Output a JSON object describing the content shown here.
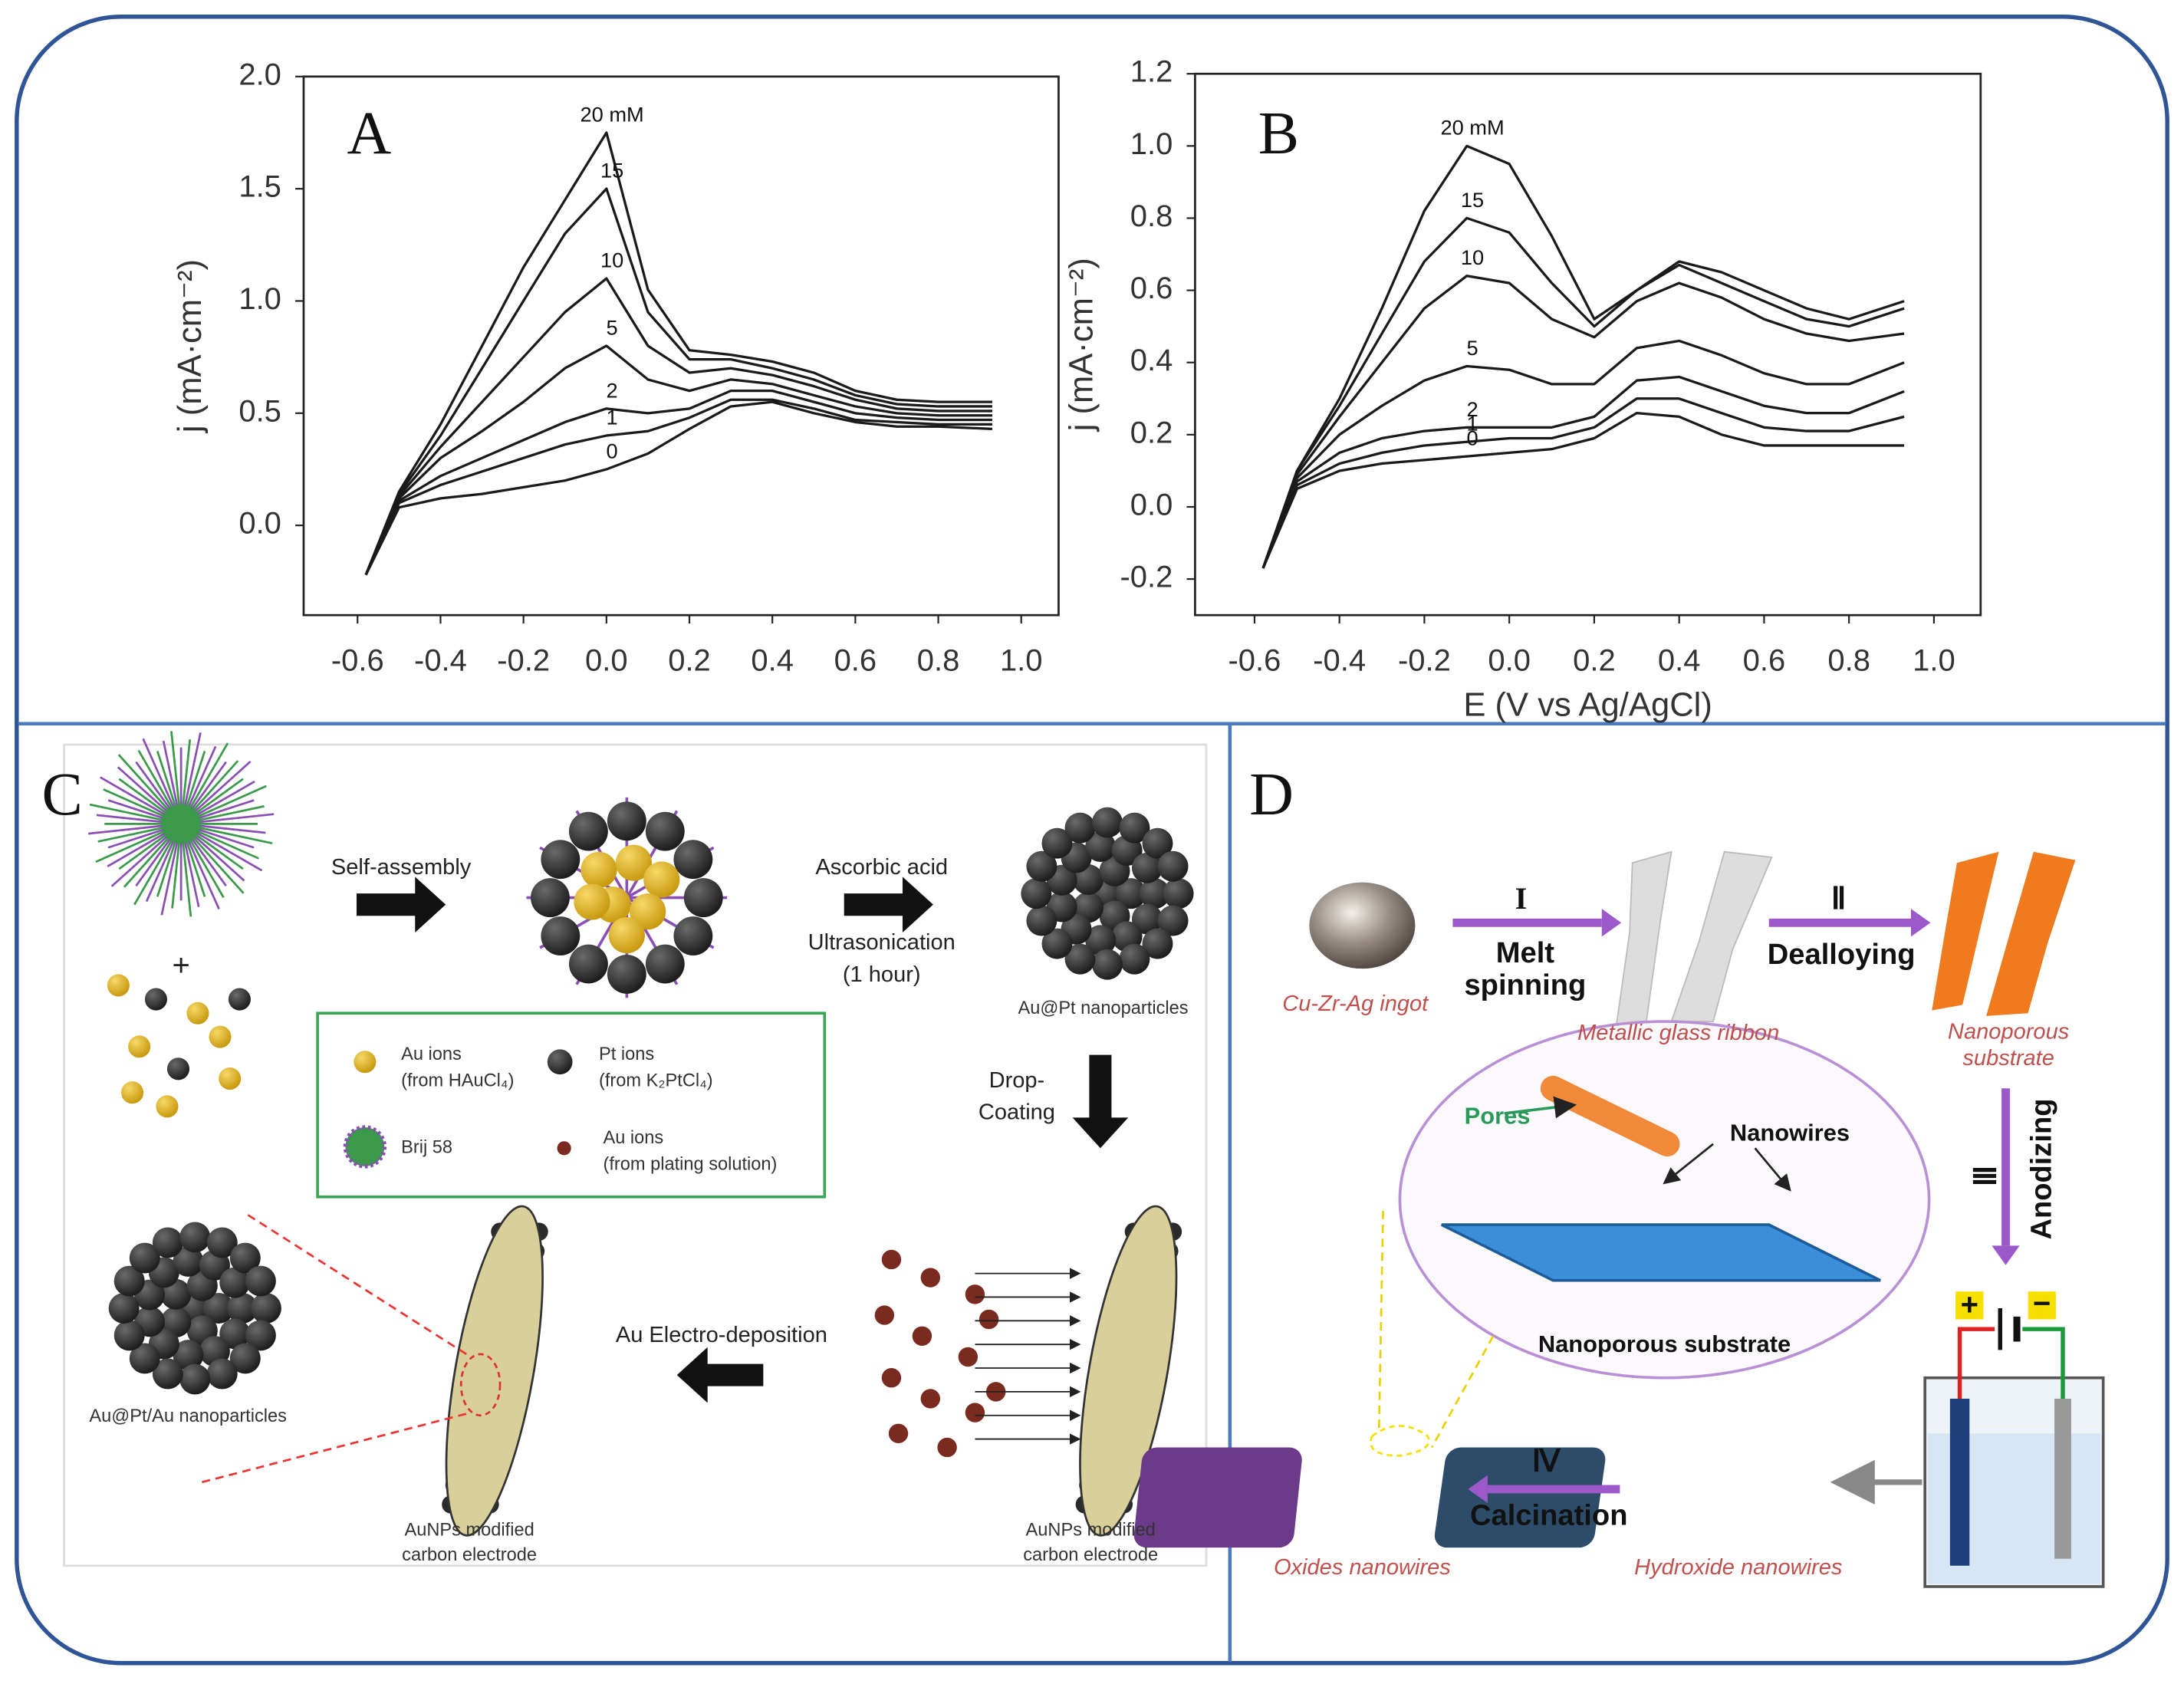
{
  "chart_data": [
    {
      "type": "line",
      "label": "A",
      "ylabel": "j (mA·cm⁻²)",
      "xlim": [
        -0.73,
        1.09
      ],
      "ylim": [
        -0.4,
        2.0
      ],
      "xticks": [
        -0.6,
        -0.4,
        -0.2,
        {
          "value": 0,
          "label": "0.0"
        },
        0.2,
        0.4,
        0.6,
        0.8,
        {
          "value": 1,
          "label": "1.0"
        }
      ],
      "yticks": [
        {
          "value": 0,
          "label": "0.0"
        },
        0.5,
        {
          "value": 1,
          "label": "1.0"
        },
        1.5,
        {
          "value": 2,
          "label": "2.0"
        }
      ],
      "x": [
        -0.58,
        -0.5,
        -0.4,
        -0.3,
        -0.2,
        -0.1,
        0.0,
        0.1,
        0.2,
        0.3,
        0.4,
        0.5,
        0.6,
        0.7,
        0.8,
        0.93
      ],
      "series": [
        {
          "name": "20 mM",
          "color": "#1a1a1a",
          "values": [
            -0.22,
            0.15,
            0.45,
            0.8,
            1.15,
            1.45,
            1.75,
            1.05,
            0.78,
            0.76,
            0.73,
            0.68,
            0.6,
            0.56,
            0.55,
            0.55
          ]
        },
        {
          "name": "15",
          "color": "#1a1a1a",
          "values": [
            -0.22,
            0.14,
            0.4,
            0.7,
            1.0,
            1.3,
            1.5,
            0.95,
            0.74,
            0.74,
            0.7,
            0.65,
            0.58,
            0.54,
            0.53,
            0.53
          ]
        },
        {
          "name": "10",
          "color": "#1a1a1a",
          "values": [
            -0.22,
            0.13,
            0.35,
            0.55,
            0.75,
            0.95,
            1.1,
            0.8,
            0.68,
            0.7,
            0.67,
            0.62,
            0.56,
            0.52,
            0.51,
            0.51
          ]
        },
        {
          "name": "5",
          "color": "#1a1a1a",
          "values": [
            -0.22,
            0.12,
            0.3,
            0.42,
            0.55,
            0.7,
            0.8,
            0.65,
            0.6,
            0.65,
            0.63,
            0.58,
            0.53,
            0.5,
            0.49,
            0.49
          ]
        },
        {
          "name": "2",
          "color": "#1a1a1a",
          "values": [
            -0.22,
            0.11,
            0.22,
            0.3,
            0.38,
            0.46,
            0.52,
            0.5,
            0.52,
            0.6,
            0.6,
            0.55,
            0.5,
            0.48,
            0.47,
            0.47
          ]
        },
        {
          "name": "1",
          "color": "#1a1a1a",
          "values": [
            -0.22,
            0.1,
            0.18,
            0.24,
            0.3,
            0.36,
            0.4,
            0.42,
            0.48,
            0.56,
            0.56,
            0.52,
            0.47,
            0.46,
            0.45,
            0.45
          ]
        },
        {
          "name": "0",
          "color": "#1a1a1a",
          "values": [
            -0.22,
            0.08,
            0.12,
            0.14,
            0.17,
            0.2,
            0.25,
            0.32,
            0.43,
            0.53,
            0.55,
            0.5,
            0.46,
            0.44,
            0.44,
            0.43
          ]
        }
      ]
    },
    {
      "type": "line",
      "label": "B",
      "ylabel": "j (mA·cm⁻²)",
      "xlabel": "E (V vs Ag/AgCl)",
      "xlim": [
        -0.74,
        1.11
      ],
      "ylim": [
        -0.3,
        1.2
      ],
      "xticks": [
        -0.6,
        -0.4,
        -0.2,
        {
          "value": 0,
          "label": "0.0"
        },
        0.2,
        0.4,
        0.6,
        0.8,
        {
          "value": 1,
          "label": "1.0"
        }
      ],
      "yticks": [
        -0.2,
        {
          "value": 0,
          "label": "0.0"
        },
        0.2,
        0.4,
        0.6,
        0.8,
        {
          "value": 1,
          "label": "1.0"
        },
        1.2
      ],
      "x": [
        -0.58,
        -0.5,
        -0.4,
        -0.3,
        -0.2,
        -0.1,
        0.0,
        0.1,
        0.2,
        0.3,
        0.4,
        0.5,
        0.6,
        0.7,
        0.8,
        0.93
      ],
      "series": [
        {
          "name": "20 mM",
          "color": "#1a1a1a",
          "values": [
            -0.17,
            0.1,
            0.3,
            0.55,
            0.82,
            1.0,
            0.95,
            0.75,
            0.52,
            0.6,
            0.68,
            0.65,
            0.6,
            0.55,
            0.52,
            0.57
          ]
        },
        {
          "name": "15",
          "color": "#1a1a1a",
          "values": [
            -0.17,
            0.1,
            0.28,
            0.48,
            0.68,
            0.8,
            0.76,
            0.62,
            0.5,
            0.6,
            0.67,
            0.62,
            0.57,
            0.52,
            0.5,
            0.55
          ]
        },
        {
          "name": "10",
          "color": "#1a1a1a",
          "values": [
            -0.17,
            0.09,
            0.25,
            0.4,
            0.55,
            0.64,
            0.62,
            0.52,
            0.47,
            0.57,
            0.62,
            0.58,
            0.52,
            0.48,
            0.46,
            0.48
          ]
        },
        {
          "name": "5",
          "color": "#1a1a1a",
          "values": [
            -0.17,
            0.08,
            0.2,
            0.28,
            0.35,
            0.39,
            0.38,
            0.34,
            0.34,
            0.44,
            0.46,
            0.42,
            0.37,
            0.34,
            0.34,
            0.4
          ]
        },
        {
          "name": "2",
          "color": "#1a1a1a",
          "values": [
            -0.17,
            0.07,
            0.15,
            0.19,
            0.21,
            0.22,
            0.22,
            0.22,
            0.25,
            0.35,
            0.36,
            0.32,
            0.28,
            0.26,
            0.26,
            0.32
          ]
        },
        {
          "name": "1",
          "color": "#1a1a1a",
          "values": [
            -0.17,
            0.06,
            0.12,
            0.15,
            0.17,
            0.18,
            0.19,
            0.19,
            0.22,
            0.3,
            0.3,
            0.26,
            0.22,
            0.21,
            0.21,
            0.25
          ]
        },
        {
          "name": "0",
          "color": "#1a1a1a",
          "values": [
            -0.17,
            0.05,
            0.1,
            0.12,
            0.13,
            0.14,
            0.15,
            0.16,
            0.19,
            0.26,
            0.25,
            0.2,
            0.17,
            0.17,
            0.17,
            0.17
          ]
        }
      ]
    }
  ],
  "panel_c": {
    "label": "C",
    "plus": "+",
    "arrow_1": "Self-assembly",
    "arrow_2": [
      "Ascorbic acid",
      "Ultrasonication",
      "(1 hour)"
    ],
    "product_1": "Au@Pt nanoparticles",
    "arrow_3": [
      "Drop-",
      "Coating"
    ],
    "electrode_1": [
      "AuNPs modified",
      "carbon electrode"
    ],
    "arrow_4": "Au Electro-deposition",
    "electrode_2": [
      "AuNPs modified",
      "carbon electrode"
    ],
    "product_2": "Au@Pt/Au nanoparticles",
    "legend": [
      {
        "name": "Au ions",
        "source": "(from HAuCl₄)"
      },
      {
        "name": "Pt ions",
        "source": "(from K₂PtCl₄)"
      },
      {
        "name": "Brij 58"
      },
      {
        "name": "Au ions",
        "source": "(from plating solution)"
      }
    ]
  },
  "panel_d": {
    "label": "D",
    "ingot": "Cu-Zr-Ag  ingot",
    "step_1": {
      "numeral": "I",
      "text": [
        "Melt",
        "spinning"
      ]
    },
    "ribbon": "Metallic glass ribbon",
    "step_2": {
      "numeral": "Ⅱ",
      "text": [
        "Dealloying"
      ]
    },
    "substrate": [
      "Nanoporous",
      "substrate"
    ],
    "step_3": {
      "numeral": "Ⅲ",
      "text": [
        "Anodizing"
      ]
    },
    "inset": {
      "pores": "Pores",
      "nanowires": "Nanowires",
      "caption": "Nanoporous substrate"
    },
    "cell": {
      "plus": "+",
      "minus": "−"
    },
    "step_4": {
      "numeral": "Ⅳ",
      "text": [
        "Calcination"
      ]
    },
    "hydroxide": "Hydroxide nanowires",
    "oxides": "Oxides nanowires"
  }
}
